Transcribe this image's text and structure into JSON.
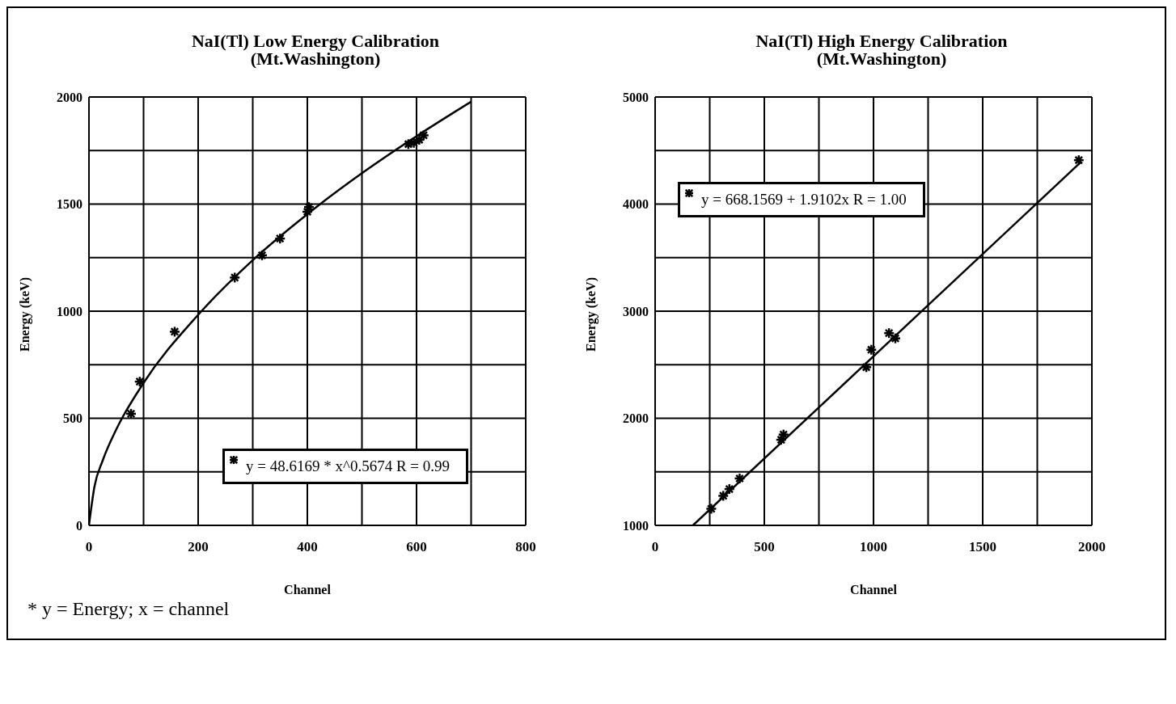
{
  "chart_data": [
    {
      "type": "scatter",
      "title": "NaI(Tl) Low Energy Calibration",
      "subtitle": "(Mt.Washington)",
      "xlabel": "Channel",
      "ylabel": "Energy (keV)",
      "xlim": [
        0,
        800
      ],
      "ylim": [
        0,
        2000
      ],
      "xticks": [
        0,
        {
          "value": 100,
          "label": null
        },
        200,
        {
          "value": 300,
          "label": null
        },
        400,
        {
          "value": 500,
          "label": null
        },
        600,
        {
          "value": 700,
          "label": null
        },
        800
      ],
      "yticks": [
        0,
        {
          "value": 250,
          "label": null
        },
        500,
        {
          "value": 750,
          "label": null
        },
        1000,
        {
          "value": 1250,
          "label": null
        },
        1500,
        {
          "value": 1750,
          "label": null
        },
        2000
      ],
      "grid": true,
      "marker": "cross",
      "series": [
        {
          "type": "scatter",
          "color": "#000000",
          "x": [
            77,
            93,
            157,
            267,
            317,
            350,
            400,
            403,
            585,
            595,
            605,
            613
          ],
          "values": [
            521,
            671,
            904,
            1157,
            1261,
            1339,
            1464,
            1486,
            1780,
            1786,
            1800,
            1821
          ]
        },
        {
          "type": "line",
          "color": "#000000",
          "marker": "none",
          "x": [
            0,
            10,
            25,
            50,
            100,
            200,
            300,
            400,
            500,
            600,
            700
          ],
          "values": [
            0,
            180,
            302,
            448,
            665,
            983,
            1238,
            1453,
            1644,
            1817,
            1978
          ]
        }
      ],
      "annotations": [
        "y = 48.6169 * x^0.5674   R = 0.99",
        "* y = Energy;  x = channel"
      ]
    },
    {
      "type": "scatter",
      "title": "NaI(Tl) High Energy Calibration",
      "subtitle": "(Mt.Washington)",
      "xlabel": "Channel",
      "ylabel": "Energy (keV)",
      "xlim": [
        0,
        2000
      ],
      "ylim": [
        1000,
        5000
      ],
      "xticks": [
        0,
        {
          "value": 250,
          "label": null
        },
        500,
        {
          "value": 750,
          "label": null
        },
        1000,
        {
          "value": 1250,
          "label": null
        },
        1500,
        {
          "value": 1750,
          "label": null
        },
        2000
      ],
      "yticks": [
        1000,
        {
          "value": 1500,
          "label": null
        },
        2000,
        {
          "value": 2500,
          "label": null
        },
        3000,
        {
          "value": 3500,
          "label": null
        },
        4000,
        {
          "value": 4500,
          "label": null
        },
        5000
      ],
      "grid": true,
      "marker": "cross",
      "series": [
        {
          "type": "scatter",
          "color": "#000000",
          "x": [
            257,
            312,
            340,
            387,
            577,
            588,
            967,
            990,
            1071,
            1100,
            1940
          ],
          "values": [
            1155,
            1276,
            1339,
            1438,
            1799,
            1848,
            2477,
            2640,
            2795,
            2746,
            4410
          ]
        },
        {
          "type": "line",
          "color": "#000000",
          "marker": "none",
          "x": [
            173,
            1950
          ],
          "values": [
            1000,
            4393
          ]
        }
      ],
      "annotations": [
        "y = 668.1569 + 1.9102x   R = 1.00"
      ]
    }
  ]
}
